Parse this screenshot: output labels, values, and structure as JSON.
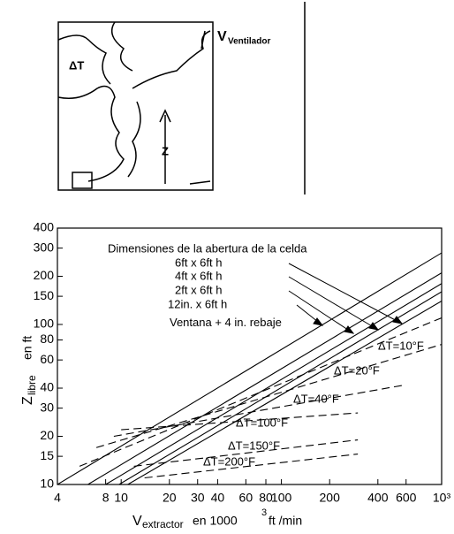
{
  "diagram": {
    "fan_label": "V",
    "fan_label_sub": "Ventilador",
    "delta_label": "ΔT",
    "height_label": "Z"
  },
  "chart_data": {
    "type": "line",
    "annotation": "Dimensiones de la abertura de la celda",
    "ylabel": [
      "Z",
      "libre",
      "en  ft"
    ],
    "xlabel": [
      "V",
      "extractor",
      "en  1000",
      "3",
      "ft  /min"
    ],
    "log_x": true,
    "log_y": true,
    "xlim": [
      4,
      1000
    ],
    "ylim": [
      10,
      400
    ],
    "xticks": [
      4,
      8,
      10,
      20,
      30,
      40,
      60,
      80,
      100,
      200,
      400,
      600,
      {
        "value": 1000,
        "label": "10³"
      }
    ],
    "yticks": [
      10,
      15,
      20,
      30,
      40,
      60,
      80,
      100,
      150,
      200,
      300,
      400
    ],
    "series": [
      {
        "name": "6ft x 6ft h",
        "color": "#000000",
        "dashed": false,
        "x": [
          11,
          1000
        ],
        "values": [
          10,
          140
        ]
      },
      {
        "name": "4ft x 6ft h",
        "color": "#000000",
        "dashed": false,
        "x": [
          9.7,
          1000
        ],
        "values": [
          10,
          160
        ]
      },
      {
        "name": "2ft x 6ft h",
        "color": "#000000",
        "dashed": false,
        "x": [
          8,
          1000
        ],
        "values": [
          10,
          180
        ]
      },
      {
        "name": "12in. x 6ft h",
        "color": "#000000",
        "dashed": false,
        "x": [
          6.2,
          1000
        ],
        "values": [
          10,
          210
        ]
      },
      {
        "name": "Ventana + 4 in. rebaje",
        "color": "#000000",
        "dashed": false,
        "x": [
          4,
          1000
        ],
        "values": [
          10,
          280
        ]
      },
      {
        "name": "ΔT=10°F",
        "color": "#000000",
        "dashed": true,
        "x": [
          5.5,
          1000
        ],
        "values": [
          13,
          110
        ]
      },
      {
        "name": "ΔT=20°F",
        "color": "#000000",
        "dashed": true,
        "x": [
          7,
          1000
        ],
        "values": [
          17,
          75
        ]
      },
      {
        "name": "ΔT=40°F",
        "color": "#000000",
        "dashed": true,
        "x": [
          9,
          600
        ],
        "values": [
          20,
          42
        ]
      },
      {
        "name": "ΔT=100°F",
        "color": "#000000",
        "dashed": true,
        "x": [
          10,
          300
        ],
        "values": [
          22,
          28
        ]
      },
      {
        "name": "ΔT=150°F",
        "color": "#000000",
        "dashed": true,
        "x": [
          12,
          300
        ],
        "values": [
          13,
          19
        ]
      },
      {
        "name": "ΔT=200°F",
        "color": "#000000",
        "dashed": true,
        "x": [
          14,
          300
        ],
        "values": [
          11,
          15.5
        ]
      }
    ]
  }
}
